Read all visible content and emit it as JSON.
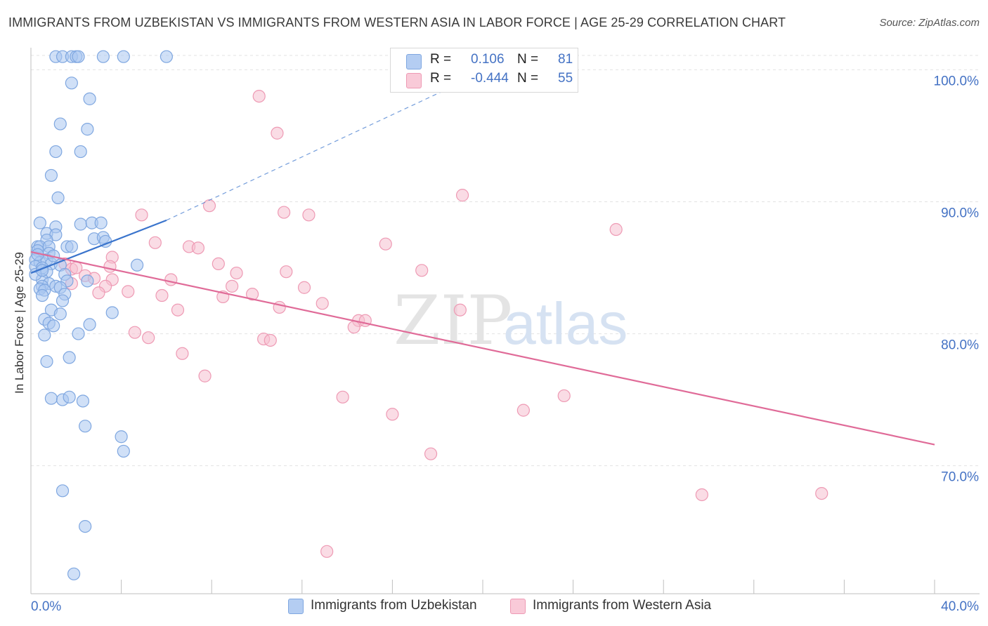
{
  "header": {
    "title": "IMMIGRANTS FROM UZBEKISTAN VS IMMIGRANTS FROM WESTERN ASIA IN LABOR FORCE | AGE 25-29 CORRELATION CHART",
    "source": "Source: ZipAtlas.com"
  },
  "watermark": {
    "zip": "ZIP",
    "atlas": "atlas"
  },
  "legend": {
    "r_label": "R =",
    "n_label": "N =",
    "rows": [
      {
        "r": "0.106",
        "n": "81"
      },
      {
        "r": "-0.444",
        "n": "55"
      }
    ]
  },
  "colors": {
    "blue_fill": "#aac6f0",
    "blue_stroke": "#7fa7e0",
    "blue_line": "#3a74cc",
    "pink_fill": "#f6bfd0",
    "pink_stroke": "#ee9ab4",
    "pink_line": "#e06b98",
    "tick_text": "#4472c4",
    "grid": "#e3e3e3"
  },
  "chart_data": {
    "type": "scatter",
    "title": "IMMIGRANTS FROM UZBEKISTAN VS IMMIGRANTS FROM WESTERN ASIA IN LABOR FORCE | AGE 25-29 CORRELATION CHART",
    "xlabel": "",
    "ylabel": "In Labor Force | Age 25-29",
    "xlim": [
      0,
      40
    ],
    "ylim": [
      60.3,
      102.1
    ],
    "x_tick_labels": [
      "0.0%",
      "40.0%"
    ],
    "y_ticks": [
      70,
      80,
      90,
      100
    ],
    "y_tick_labels": [
      "70.0%",
      "80.0%",
      "90.0%",
      "100.0%"
    ],
    "grid": "horizontal dashed",
    "legend_position": "bottom",
    "series": [
      {
        "name": "Immigrants from Uzbekistan",
        "r": 0.106,
        "n": 81,
        "trend": {
          "x": [
            0,
            6.0
          ],
          "y": [
            84.6,
            88.6
          ],
          "extended_to": [
            20.0,
            99.8
          ]
        },
        "points": [
          [
            1.1,
            101.0
          ],
          [
            1.4,
            101.0
          ],
          [
            1.8,
            101.0
          ],
          [
            2.0,
            101.0
          ],
          [
            2.1,
            101.0
          ],
          [
            3.2,
            101.0
          ],
          [
            4.1,
            101.0
          ],
          [
            6.0,
            101.0
          ],
          [
            1.8,
            99.0
          ],
          [
            2.6,
            97.8
          ],
          [
            1.3,
            95.9
          ],
          [
            2.5,
            95.5
          ],
          [
            1.1,
            93.8
          ],
          [
            2.2,
            93.8
          ],
          [
            0.9,
            92.0
          ],
          [
            1.2,
            90.3
          ],
          [
            0.4,
            88.4
          ],
          [
            1.1,
            88.1
          ],
          [
            2.2,
            88.3
          ],
          [
            2.7,
            88.4
          ],
          [
            3.1,
            88.4
          ],
          [
            0.7,
            87.6
          ],
          [
            1.1,
            87.5
          ],
          [
            0.7,
            87.1
          ],
          [
            2.8,
            87.2
          ],
          [
            3.2,
            87.3
          ],
          [
            3.3,
            87.0
          ],
          [
            0.3,
            86.6
          ],
          [
            0.4,
            86.6
          ],
          [
            0.8,
            86.6
          ],
          [
            1.6,
            86.6
          ],
          [
            1.8,
            86.6
          ],
          [
            0.3,
            86.3
          ],
          [
            0.8,
            86.1
          ],
          [
            0.2,
            85.6
          ],
          [
            0.4,
            85.4
          ],
          [
            0.7,
            85.6
          ],
          [
            0.9,
            85.3
          ],
          [
            1.3,
            85.2
          ],
          [
            4.7,
            85.2
          ],
          [
            0.2,
            85.1
          ],
          [
            0.5,
            85.0
          ],
          [
            0.7,
            84.7
          ],
          [
            1.5,
            84.5
          ],
          [
            0.5,
            84.1
          ],
          [
            1.6,
            84.0
          ],
          [
            2.5,
            84.0
          ],
          [
            0.8,
            83.8
          ],
          [
            0.5,
            83.6
          ],
          [
            1.1,
            83.6
          ],
          [
            1.3,
            83.5
          ],
          [
            0.4,
            83.4
          ],
          [
            0.6,
            83.3
          ],
          [
            1.5,
            83.0
          ],
          [
            0.5,
            82.9
          ],
          [
            1.4,
            82.5
          ],
          [
            0.9,
            81.8
          ],
          [
            1.3,
            81.5
          ],
          [
            3.6,
            81.6
          ],
          [
            0.6,
            81.1
          ],
          [
            0.8,
            80.8
          ],
          [
            1.0,
            80.6
          ],
          [
            2.6,
            80.7
          ],
          [
            2.1,
            80.0
          ],
          [
            0.6,
            79.9
          ],
          [
            1.7,
            78.2
          ],
          [
            0.7,
            77.9
          ],
          [
            0.9,
            75.1
          ],
          [
            1.4,
            75.0
          ],
          [
            1.7,
            75.2
          ],
          [
            2.3,
            74.9
          ],
          [
            2.4,
            73.0
          ],
          [
            4.0,
            72.2
          ],
          [
            4.1,
            71.1
          ],
          [
            1.4,
            68.1
          ],
          [
            2.4,
            65.4
          ],
          [
            1.9,
            61.8
          ],
          [
            0.2,
            84.5
          ],
          [
            0.5,
            84.8
          ],
          [
            0.3,
            86.0
          ],
          [
            1.0,
            85.9
          ]
        ]
      },
      {
        "name": "Immigrants from Western Asia",
        "r": -0.444,
        "n": 55,
        "trend": {
          "x": [
            0,
            40.0
          ],
          "y": [
            86.2,
            71.6
          ]
        },
        "points": [
          [
            10.1,
            98.0
          ],
          [
            10.9,
            95.2
          ],
          [
            19.1,
            90.5
          ],
          [
            7.9,
            89.7
          ],
          [
            11.2,
            89.2
          ],
          [
            12.3,
            89.0
          ],
          [
            4.9,
            89.0
          ],
          [
            25.9,
            87.9
          ],
          [
            5.5,
            86.9
          ],
          [
            15.7,
            86.8
          ],
          [
            7.0,
            86.6
          ],
          [
            7.4,
            86.5
          ],
          [
            3.6,
            85.8
          ],
          [
            8.3,
            85.3
          ],
          [
            3.5,
            85.1
          ],
          [
            1.5,
            85.3
          ],
          [
            1.8,
            84.9
          ],
          [
            11.3,
            84.7
          ],
          [
            9.1,
            84.6
          ],
          [
            17.3,
            84.8
          ],
          [
            2.4,
            84.4
          ],
          [
            2.8,
            84.2
          ],
          [
            3.6,
            84.1
          ],
          [
            6.2,
            84.1
          ],
          [
            1.8,
            83.8
          ],
          [
            3.3,
            83.6
          ],
          [
            8.9,
            83.6
          ],
          [
            12.1,
            83.5
          ],
          [
            4.3,
            83.2
          ],
          [
            3.0,
            83.1
          ],
          [
            5.8,
            82.9
          ],
          [
            8.5,
            82.8
          ],
          [
            12.9,
            82.3
          ],
          [
            6.5,
            81.8
          ],
          [
            19.0,
            81.8
          ],
          [
            14.5,
            81.0
          ],
          [
            14.8,
            81.0
          ],
          [
            14.3,
            80.5
          ],
          [
            4.6,
            80.1
          ],
          [
            5.2,
            79.7
          ],
          [
            10.3,
            79.6
          ],
          [
            10.6,
            79.5
          ],
          [
            6.7,
            78.5
          ],
          [
            7.7,
            76.8
          ],
          [
            13.8,
            75.2
          ],
          [
            23.6,
            75.3
          ],
          [
            16.0,
            73.9
          ],
          [
            21.8,
            74.2
          ],
          [
            17.7,
            70.9
          ],
          [
            29.7,
            67.8
          ],
          [
            35.0,
            67.9
          ],
          [
            13.1,
            63.5
          ],
          [
            11.0,
            82.0
          ],
          [
            9.8,
            83.0
          ],
          [
            2.0,
            85.0
          ]
        ]
      }
    ]
  },
  "bottom_legend": [
    "Immigrants from Uzbekistan",
    "Immigrants from Western Asia"
  ]
}
